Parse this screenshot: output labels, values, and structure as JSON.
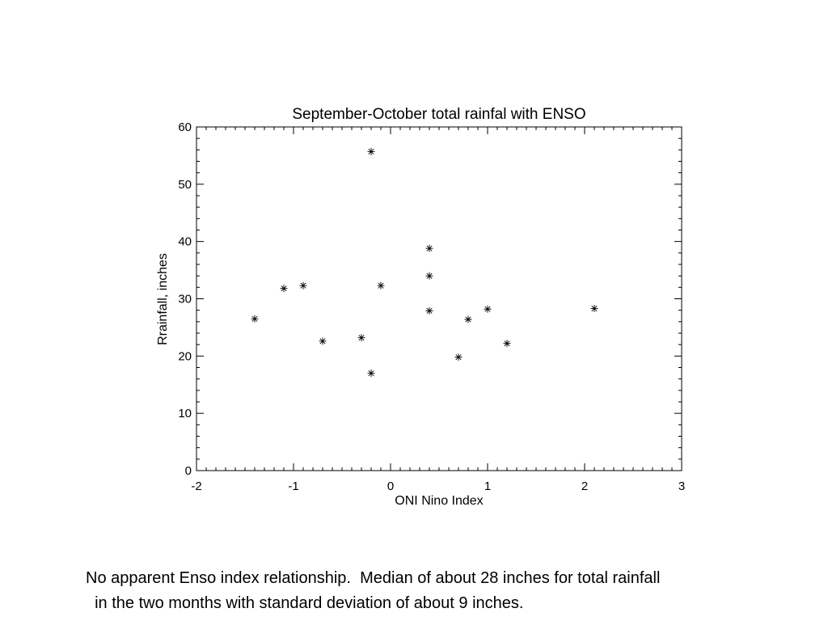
{
  "chart_data": {
    "type": "scatter",
    "title": "September-October total rainfal with ENSO",
    "xlabel": "ONI Nino Index",
    "ylabel": "Rrainfall, inches",
    "xlim": [
      -2,
      3
    ],
    "ylim": [
      0,
      60
    ],
    "x_ticks": [
      "-2",
      "-1",
      "0",
      "1",
      "2",
      "3"
    ],
    "y_ticks": [
      "0",
      "10",
      "20",
      "30",
      "40",
      "50",
      "60"
    ],
    "marker": "asterisk",
    "grid": false,
    "legend": "none",
    "points": [
      {
        "x": -1.4,
        "y": 26.5
      },
      {
        "x": -1.1,
        "y": 31.8
      },
      {
        "x": -0.9,
        "y": 32.3
      },
      {
        "x": -0.7,
        "y": 22.6
      },
      {
        "x": -0.3,
        "y": 23.2
      },
      {
        "x": -0.2,
        "y": 55.7
      },
      {
        "x": -0.2,
        "y": 17.0
      },
      {
        "x": -0.1,
        "y": 32.3
      },
      {
        "x": 0.4,
        "y": 38.8
      },
      {
        "x": 0.4,
        "y": 34.0
      },
      {
        "x": 0.4,
        "y": 27.9
      },
      {
        "x": 0.7,
        "y": 19.8
      },
      {
        "x": 0.8,
        "y": 26.4
      },
      {
        "x": 1.0,
        "y": 28.2
      },
      {
        "x": 1.2,
        "y": 22.2
      },
      {
        "x": 2.1,
        "y": 28.3
      }
    ]
  },
  "caption": {
    "line1": "No apparent Enso index relationship.  Median of about 28 inches for total rainfall",
    "line2": "  in the two months with standard deviation of about 9 inches."
  }
}
